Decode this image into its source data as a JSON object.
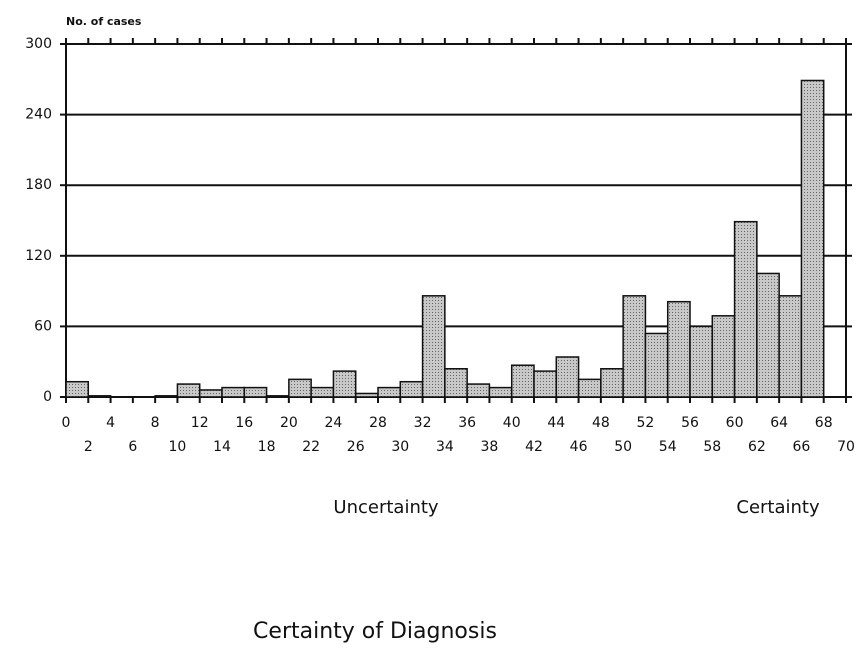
{
  "chart_data": {
    "type": "histogram",
    "title": "Certainty of Diagnosis",
    "y_label": "No. of cases",
    "annotations": [
      "Uncertainty",
      "Certainty"
    ],
    "bins": [
      0,
      2,
      4,
      6,
      8,
      10,
      12,
      14,
      16,
      18,
      20,
      22,
      24,
      26,
      28,
      30,
      32,
      34,
      36,
      38,
      40,
      42,
      44,
      46,
      48,
      50,
      52,
      54,
      56,
      58,
      60,
      62,
      64,
      66,
      68,
      70
    ],
    "values": [
      13,
      1,
      0,
      0,
      1,
      11,
      6,
      8,
      8,
      1,
      15,
      8,
      22,
      3,
      8,
      13,
      86,
      24,
      11,
      8,
      27,
      22,
      34,
      15,
      24,
      86,
      54,
      81,
      60,
      69,
      149,
      105,
      86,
      269,
      0
    ],
    "color": "#b4b4b4",
    "xlim": [
      0,
      70
    ],
    "xticks": [
      0,
      2,
      4,
      6,
      8,
      10,
      12,
      14,
      16,
      18,
      20,
      22,
      24,
      26,
      28,
      30,
      32,
      34,
      36,
      38,
      40,
      42,
      44,
      46,
      48,
      50,
      52,
      54,
      56,
      58,
      60,
      62,
      64,
      66,
      68,
      70
    ],
    "ylim": [
      0,
      300
    ],
    "yticks": [
      0,
      60,
      120,
      180,
      240,
      300
    ],
    "grid": true
  }
}
